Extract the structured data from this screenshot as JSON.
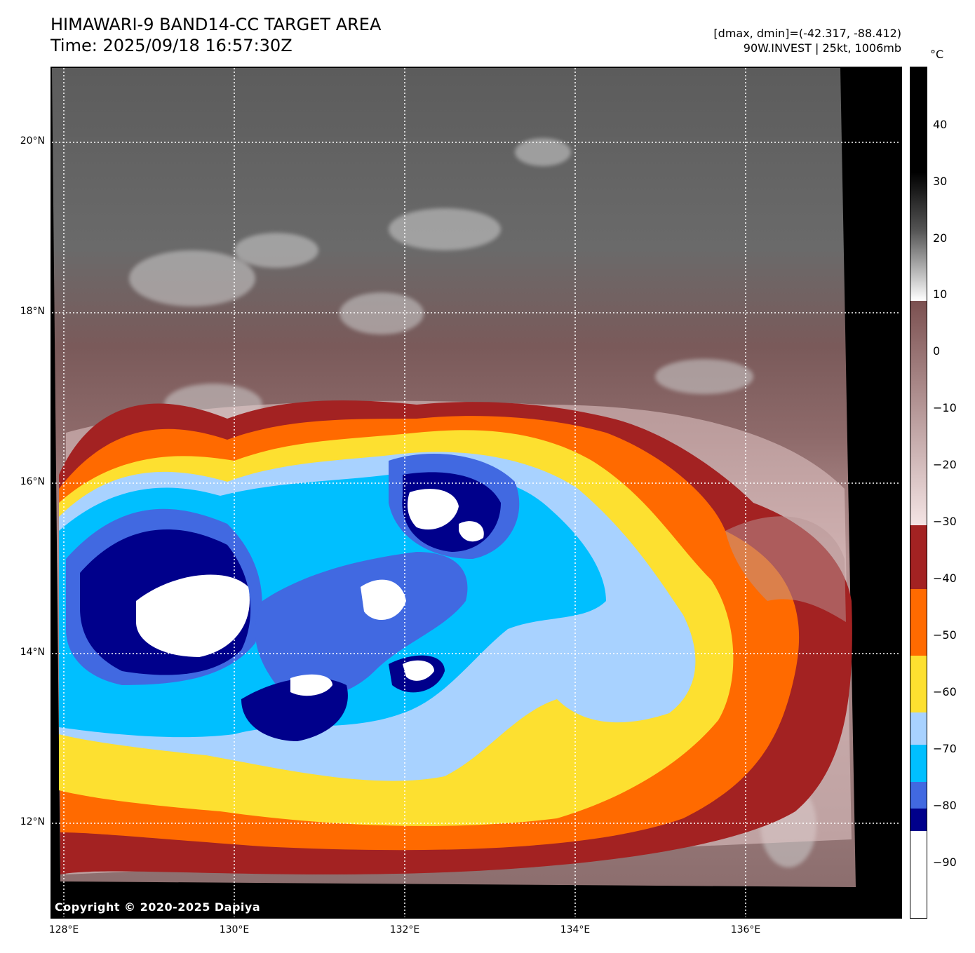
{
  "header": {
    "title_line1": "HIMAWARI-9 BAND14-CC TARGET AREA",
    "title_line2": "Time: 2025/09/18 16:57:30Z",
    "info_line1": "[dmax, dmin]=(-42.317, -88.412)",
    "info_line2": "90W.INVEST | 25kt, 1006mb"
  },
  "map": {
    "lat_labels": [
      "20°N",
      "18°N",
      "16°N",
      "14°N",
      "12°N"
    ],
    "lon_labels": [
      "128°E",
      "130°E",
      "132°E",
      "134°E",
      "136°E"
    ],
    "copyright": "Copyright © 2020-2025 Dapiya"
  },
  "colorbar": {
    "unit": "°C",
    "tick_labels": [
      "40",
      "30",
      "20",
      "10",
      "0",
      "−10",
      "−20",
      "−30",
      "−40",
      "−50",
      "−60",
      "−70",
      "−80",
      "−90"
    ],
    "colors": {
      "white": "#ffffff",
      "dark_blue": "#00008b",
      "royal_blue": "#4169e1",
      "deep_sky_blue": "#00bfff",
      "light_blue": "#a8d2ff",
      "yellow": "#fde030",
      "orange": "#ff6a00",
      "brick_red": "#a32222",
      "mauve": "#7b5050",
      "pale_pink": "#f1dcdc"
    }
  }
}
